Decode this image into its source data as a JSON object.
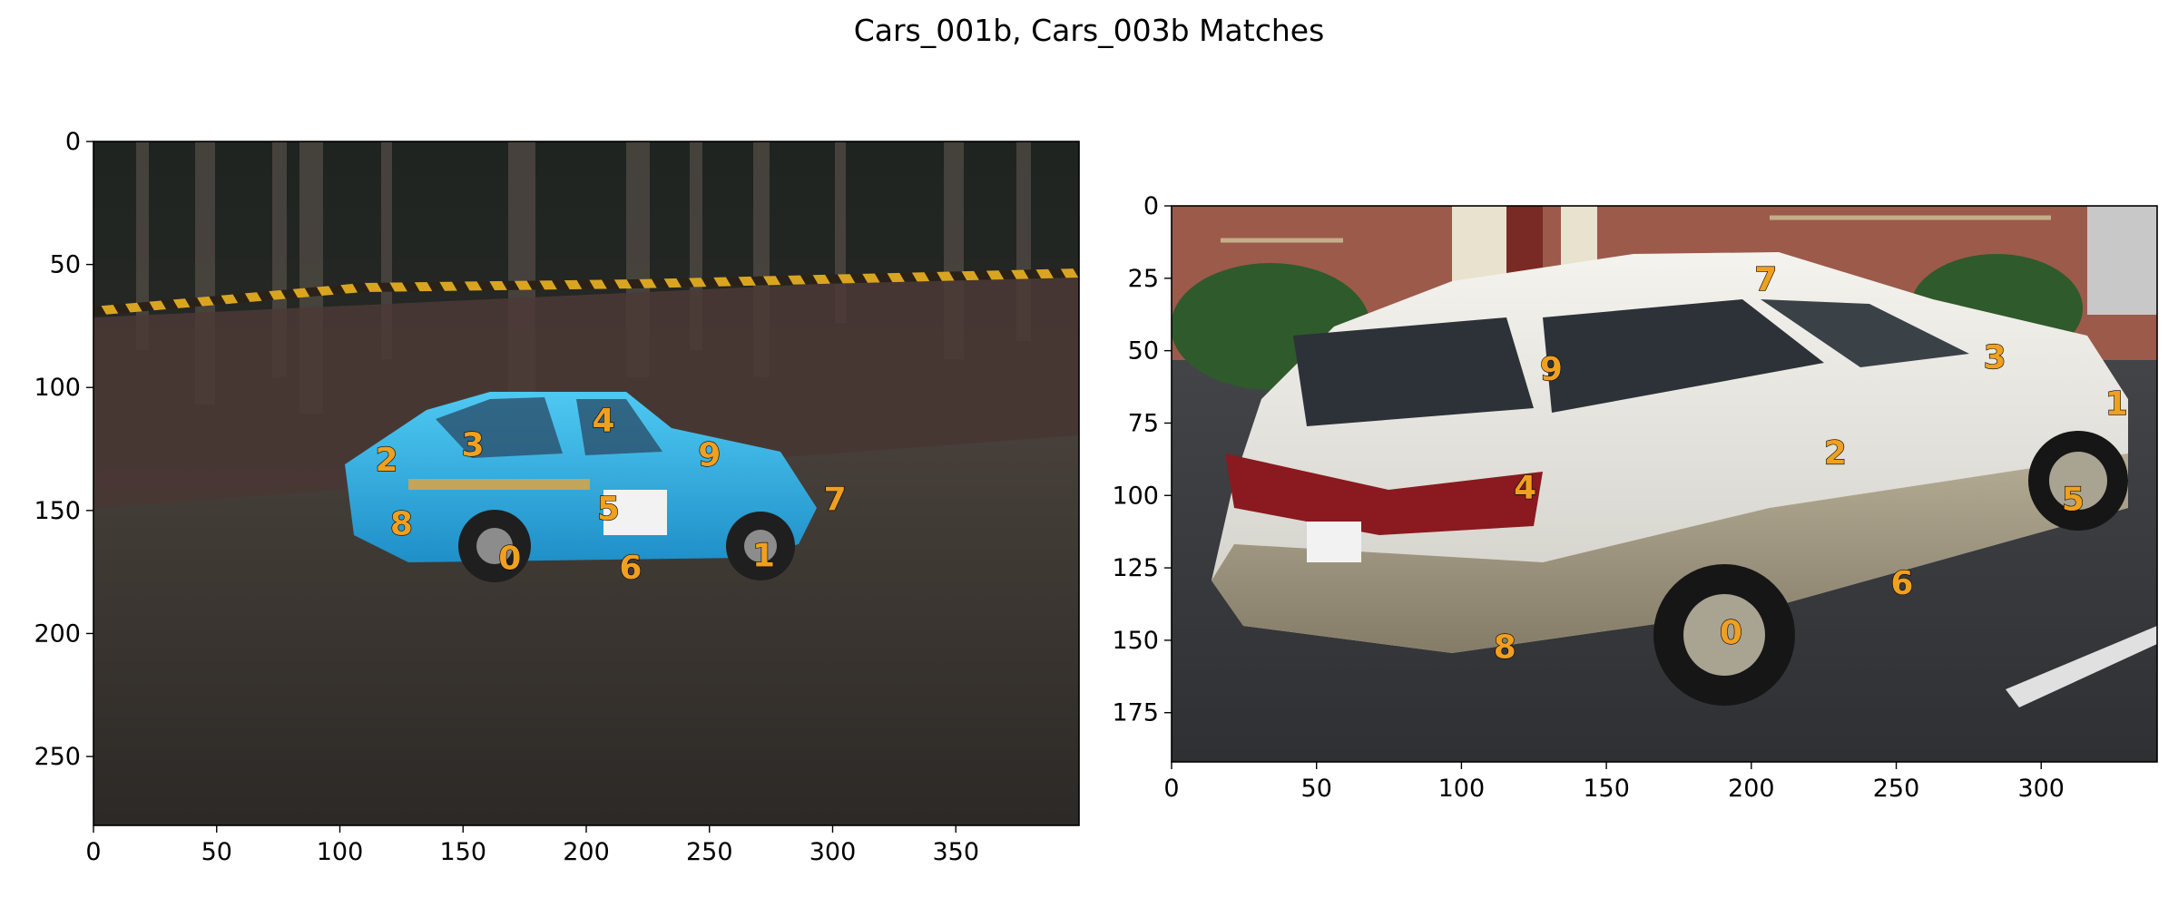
{
  "title": "Cars_001b, Cars_003b Matches",
  "colors": {
    "keypoint_label": "#f0a020",
    "axes": "#000000",
    "background": "#ffffff"
  },
  "chart_data": [
    {
      "type": "scatter",
      "image": "Cars_001b",
      "title": "",
      "xlabel": "",
      "ylabel": "",
      "xlim": [
        0,
        400
      ],
      "ylim": [
        278,
        0
      ],
      "xticks": [
        0,
        50,
        100,
        150,
        200,
        250,
        300,
        350
      ],
      "yticks": [
        0,
        50,
        100,
        150,
        200,
        250
      ],
      "grid": false,
      "points": [
        {
          "label": "0",
          "x": 169,
          "y": 169
        },
        {
          "label": "1",
          "x": 272,
          "y": 168
        },
        {
          "label": "2",
          "x": 119,
          "y": 129
        },
        {
          "label": "3",
          "x": 154,
          "y": 123
        },
        {
          "label": "4",
          "x": 207,
          "y": 113
        },
        {
          "label": "5",
          "x": 209,
          "y": 149
        },
        {
          "label": "6",
          "x": 218,
          "y": 173
        },
        {
          "label": "7",
          "x": 301,
          "y": 145
        },
        {
          "label": "8",
          "x": 125,
          "y": 155
        },
        {
          "label": "9",
          "x": 250,
          "y": 127
        }
      ]
    },
    {
      "type": "scatter",
      "image": "Cars_003b",
      "title": "",
      "xlabel": "",
      "ylabel": "",
      "xlim": [
        0,
        340
      ],
      "ylim": [
        192,
        0
      ],
      "xticks": [
        0,
        50,
        100,
        150,
        200,
        250,
        300
      ],
      "yticks": [
        0,
        25,
        50,
        75,
        100,
        125,
        150,
        175
      ],
      "grid": false,
      "points": [
        {
          "label": "0",
          "x": 193,
          "y": 147
        },
        {
          "label": "1",
          "x": 326,
          "y": 68
        },
        {
          "label": "2",
          "x": 229,
          "y": 85
        },
        {
          "label": "3",
          "x": 284,
          "y": 52
        },
        {
          "label": "4",
          "x": 122,
          "y": 97
        },
        {
          "label": "5",
          "x": 311,
          "y": 101
        },
        {
          "label": "6",
          "x": 252,
          "y": 130
        },
        {
          "label": "7",
          "x": 205,
          "y": 25
        },
        {
          "label": "8",
          "x": 115,
          "y": 152
        },
        {
          "label": "9",
          "x": 131,
          "y": 56
        }
      ]
    }
  ]
}
